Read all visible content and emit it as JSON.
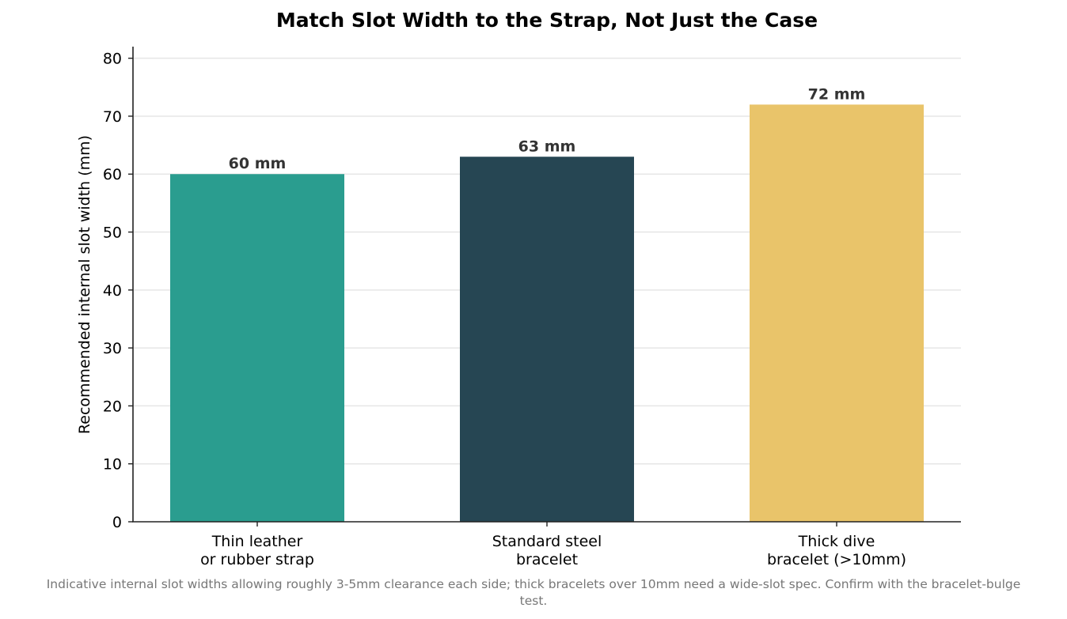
{
  "chart_data": {
    "type": "bar",
    "title": "Match Slot Width to the Strap, Not Just the Case",
    "xlabel": "",
    "ylabel": "Recommended internal slot width (mm)",
    "categories": [
      [
        "Thin leather",
        "or rubber strap"
      ],
      [
        "Standard steel",
        "bracelet"
      ],
      [
        "Thick dive",
        "bracelet (>10mm)"
      ]
    ],
    "values": [
      60,
      63,
      72
    ],
    "value_labels": [
      "60 mm",
      "63 mm",
      "72 mm"
    ],
    "colors": [
      "#2a9d8f",
      "#264653",
      "#e9c46a"
    ],
    "ylim": [
      0,
      82
    ],
    "yticks": [
      0,
      10,
      20,
      30,
      40,
      50,
      60,
      70,
      80
    ],
    "grid": "horizontal",
    "legend": "none"
  },
  "caption": [
    "Indicative internal slot widths allowing roughly 3-5mm clearance each side; thick bracelets over 10mm need a wide-slot spec. Confirm with the bracelet-bulge",
    "test."
  ]
}
